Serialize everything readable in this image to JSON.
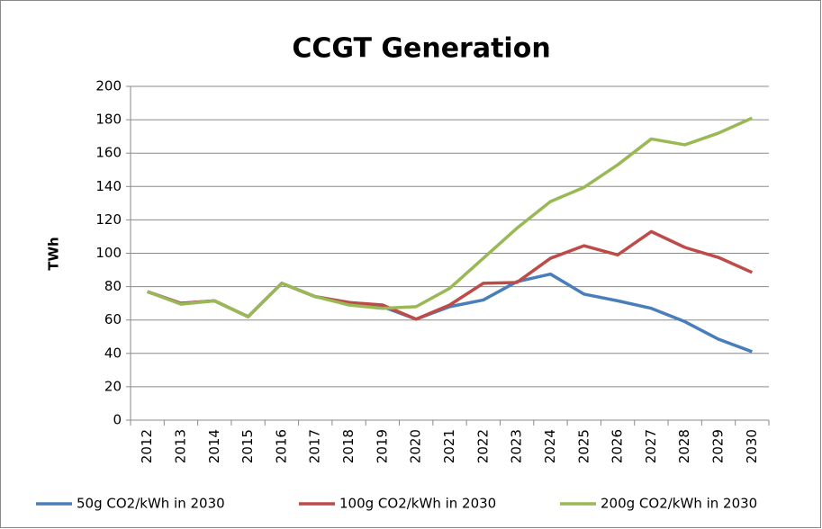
{
  "chart_data": {
    "type": "line",
    "title": "CCGT Generation",
    "y_label": "TWh",
    "categories": [
      "2012",
      "2013",
      "2014",
      "2015",
      "2016",
      "2017",
      "2018",
      "2019",
      "2020",
      "2021",
      "2022",
      "2023",
      "2024",
      "2025",
      "2026",
      "2027",
      "2028",
      "2029",
      "2030"
    ],
    "series": [
      {
        "name": "50g CO2/kWh in 2030",
        "color": "#4a7ebb",
        "values": [
          77,
          70,
          71.5,
          62,
          82,
          74,
          70.5,
          68,
          60.5,
          68,
          72,
          83,
          87.5,
          75.5,
          71.5,
          67,
          59,
          48.5,
          41
        ]
      },
      {
        "name": "100g CO2/kWh in 2030",
        "color": "#be4b48",
        "values": [
          77,
          70,
          71.5,
          62,
          82,
          74,
          70.5,
          69,
          60.5,
          69,
          82,
          82.5,
          97,
          104.5,
          99,
          113,
          103.5,
          97.5,
          88.5
        ]
      },
      {
        "name": "200g CO2/kWh in 2030",
        "color": "#98b954",
        "values": [
          77,
          69.5,
          71.5,
          62,
          82,
          74,
          69,
          67,
          68,
          79,
          97,
          115,
          131,
          139.5,
          153,
          168.5,
          165,
          172,
          181
        ]
      }
    ],
    "ylim": [
      0,
      200
    ],
    "yticks": [
      0,
      20,
      40,
      60,
      80,
      100,
      120,
      140,
      160,
      180,
      200
    ],
    "grid": true,
    "legend": "bottom"
  }
}
